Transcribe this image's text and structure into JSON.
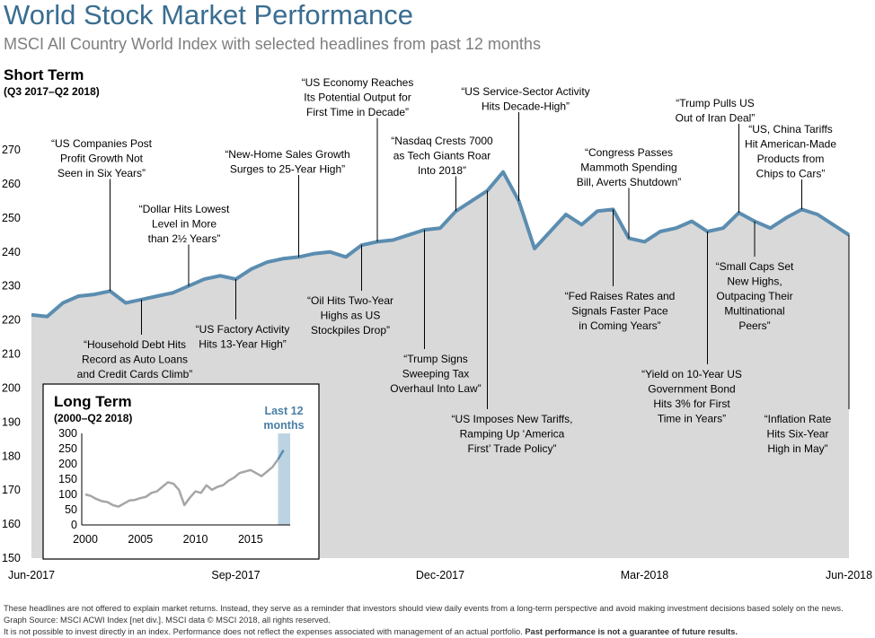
{
  "title": "World Stock Market Performance",
  "subtitle": "MSCI All Country World Index with selected headlines from past 12 months",
  "notes": [
    "These headlines are not offered to explain market returns. Instead, they serve as a reminder that investors should view daily events from a long-term perspective and avoid making investment decisions based solely on the news.",
    "Graph Source: MSCI ACWI Index [net div.]. MSCI data © MSCI 2018, all rights reserved.",
    "It is not possible to invest directly in an index. Performance does not reflect the expenses associated with management of an actual portfolio."
  ],
  "notes_bold": "Past performance is not a guarantee of future results.",
  "chart_data": [
    {
      "type": "area",
      "title": "Short Term",
      "subtitle": "(Q3 2017–Q2 2018)",
      "categories": [
        "Jun-2017",
        null,
        null,
        null,
        null,
        null,
        null,
        null,
        null,
        null,
        null,
        null,
        null,
        "Sep-2017",
        null,
        null,
        null,
        null,
        null,
        null,
        null,
        null,
        null,
        null,
        null,
        null,
        "Dec-2017",
        null,
        null,
        null,
        null,
        null,
        null,
        null,
        null,
        null,
        null,
        null,
        null,
        "Mar-2018",
        null,
        null,
        null,
        null,
        null,
        null,
        null,
        null,
        null,
        null,
        null,
        null,
        "Jun-2018"
      ],
      "values": [
        221.5,
        221,
        225,
        227,
        227.5,
        228.5,
        225,
        226,
        227,
        228,
        230,
        232,
        233,
        232,
        235,
        237,
        238,
        238.5,
        239.5,
        240,
        238.5,
        242,
        243,
        243.5,
        245,
        246.5,
        247,
        252,
        255,
        258,
        263.5,
        255,
        241,
        246,
        251,
        248,
        252,
        252.5,
        244,
        243,
        246,
        247,
        249,
        246,
        247,
        251.5,
        249,
        247,
        250,
        252.5,
        251,
        248,
        245
      ],
      "color": "#5b8db0",
      "fill": "#d9d9d9",
      "ylim": [
        150,
        270
      ],
      "yticks": [
        150,
        160,
        170,
        180,
        190,
        200,
        210,
        220,
        230,
        240,
        250,
        260,
        270
      ],
      "annotations": [
        [
          "“US Companies Post",
          "Profit Growth Not",
          "Seen in Six Years”"
        ],
        [
          "“Household Debt Hits",
          "Record as Auto Loans",
          "and Credit Cards Climb”"
        ],
        [
          "“Dollar Hits Lowest",
          "Level in More",
          "than 2½ Years”"
        ],
        [
          "“US Factory Activity",
          "Hits 13-Year High”"
        ],
        [
          "“New-Home Sales Growth",
          "Surges to 25-Year High”"
        ],
        [
          "“Oil Hits Two-Year",
          "Highs as US",
          "Stockpiles Drop”"
        ],
        [
          "“US Economy Reaches",
          "Its Potential Output for",
          "First Time in Decade”"
        ],
        [
          "“Trump Signs",
          "Sweeping Tax",
          "Overhaul Into Law”"
        ],
        [
          "“Nasdaq Crests 7000",
          "as Tech Giants Roar",
          "Into 2018”"
        ],
        [
          "“US Imposes New Tariffs,",
          "Ramping Up ‘America",
          "First’ Trade Policy”"
        ],
        [
          "“US Service-Sector Activity",
          "Hits Decade-High”"
        ],
        [
          "“Fed Raises Rates and",
          "Signals Faster Pace",
          "in Coming Years”"
        ],
        [
          "“Congress Passes",
          "Mammoth Spending",
          "Bill, Averts Shutdown”"
        ],
        [
          "“Yield on 10-Year US",
          "Government Bond",
          "Hits 3% for First",
          "Time in Years”"
        ],
        [
          "“Trump Pulls US",
          "Out of Iran Deal”"
        ],
        [
          "“Small Caps Set",
          "New Highs,",
          "Outpacing Their",
          "Multinational",
          "Peers”"
        ],
        [
          "“US, China Tariffs",
          "Hit American-Made",
          "Products from",
          "Chips to Cars”"
        ],
        [
          "“Inflation Rate",
          "Hits Six-Year",
          "High in May”"
        ]
      ]
    },
    {
      "type": "line",
      "title": "Long Term",
      "subtitle": "(2000–Q2 2018)",
      "x": [
        2000,
        2000.5,
        2001,
        2001.5,
        2002,
        2002.5,
        2003,
        2003.5,
        2004,
        2004.5,
        2005,
        2005.5,
        2006,
        2006.5,
        2007,
        2007.5,
        2008,
        2008.5,
        2009,
        2009.5,
        2010,
        2010.5,
        2011,
        2011.5,
        2012,
        2012.5,
        2013,
        2013.5,
        2014,
        2014.5,
        2015,
        2015.5,
        2016,
        2016.5,
        2017,
        2017.5,
        2018
      ],
      "series": [
        {
          "color": "#a6a6a6",
          "values": [
            100,
            95,
            85,
            78,
            75,
            65,
            60,
            70,
            80,
            82,
            88,
            92,
            105,
            110,
            125,
            140,
            135,
            115,
            65,
            90,
            110,
            105,
            130,
            115,
            125,
            130,
            145,
            155,
            170,
            175,
            180,
            170,
            160,
            175,
            190,
            215,
            null
          ]
        },
        {
          "color": "#5b8db0",
          "values": [
            null,
            null,
            null,
            null,
            null,
            null,
            null,
            null,
            null,
            null,
            null,
            null,
            null,
            null,
            null,
            null,
            null,
            null,
            null,
            null,
            null,
            null,
            null,
            null,
            null,
            null,
            null,
            null,
            null,
            null,
            null,
            null,
            null,
            null,
            null,
            215,
            245
          ]
        }
      ],
      "highlight": {
        "label": [
          "Last 12",
          "months"
        ],
        "range": [
          2017.5,
          2018.6
        ],
        "color": "#bcd3e2",
        "label_color": "#4a7fa6"
      },
      "xlim": [
        2000,
        2018.6
      ],
      "xticks": [
        2000,
        2005,
        2010,
        2015
      ],
      "ylim": [
        0,
        300
      ],
      "yticks": [
        0,
        50,
        100,
        150,
        200,
        250,
        300
      ]
    }
  ]
}
